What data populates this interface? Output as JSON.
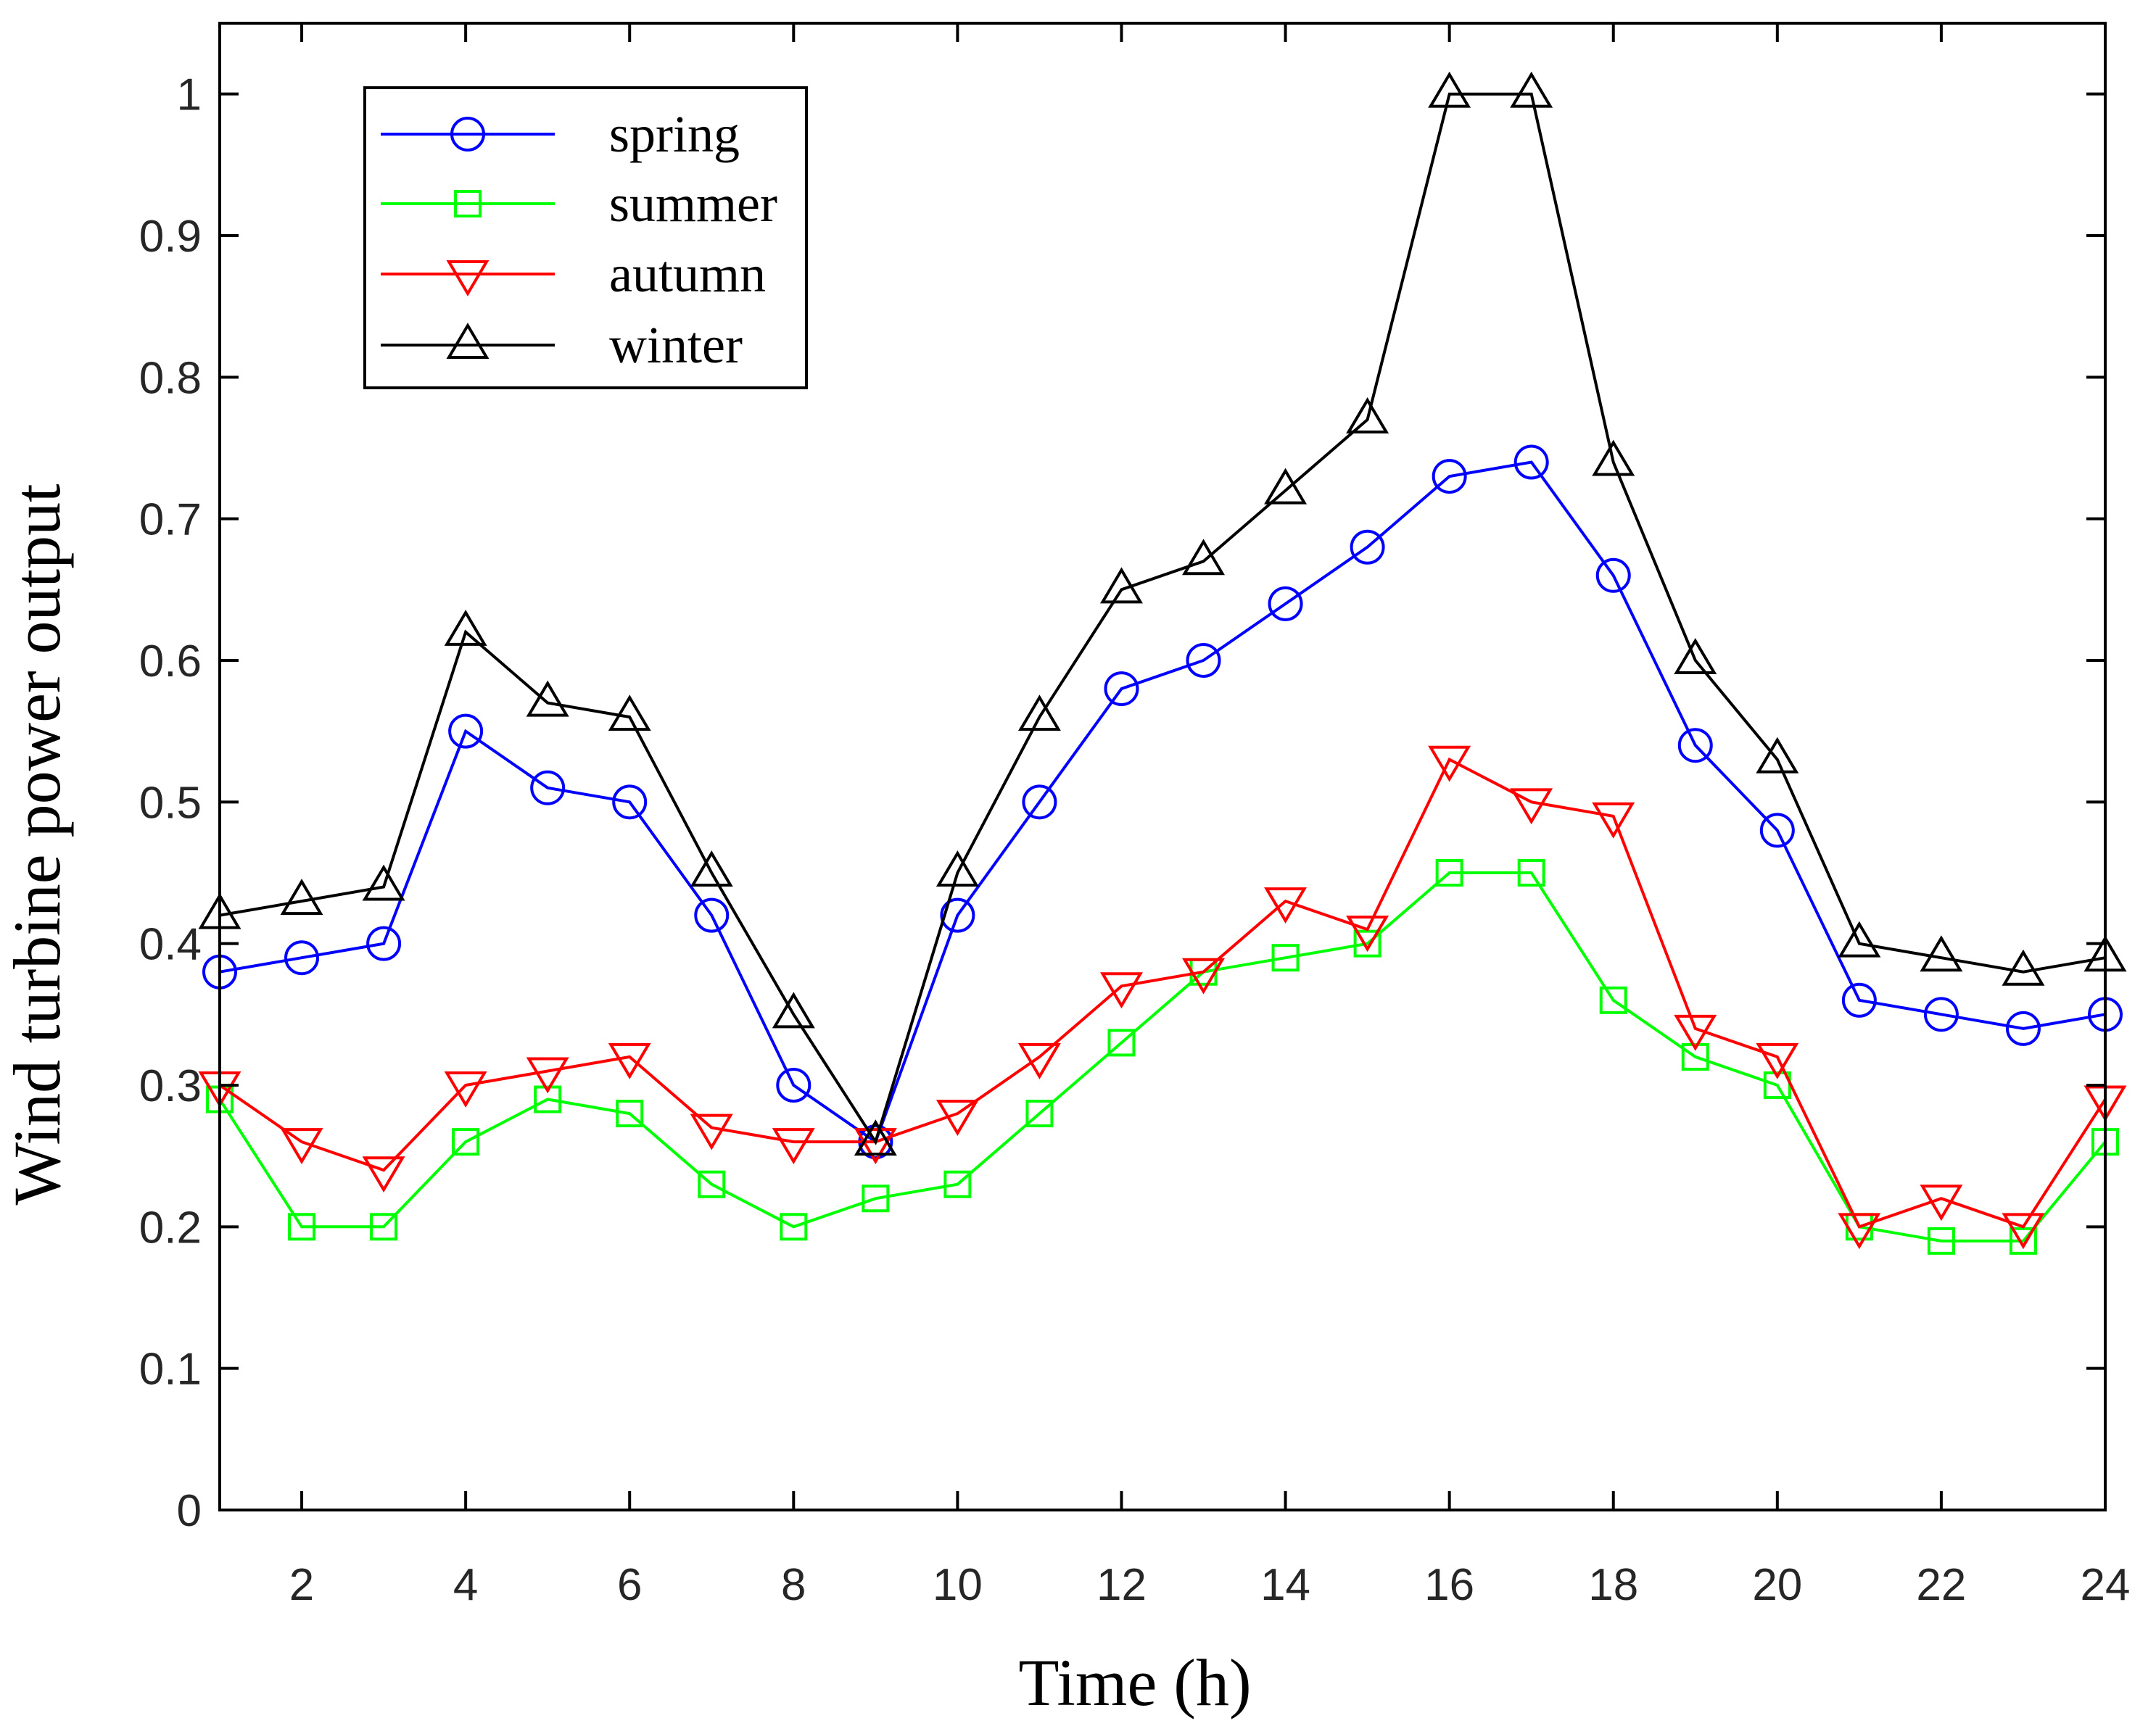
{
  "chart_data": {
    "type": "line",
    "title": "",
    "xlabel": "Time (h)",
    "ylabel": "Wind turbine power output",
    "xlim": [
      1,
      24
    ],
    "ylim": [
      0,
      1.05
    ],
    "xticks": [
      2,
      4,
      6,
      8,
      10,
      12,
      14,
      16,
      18,
      20,
      22,
      24
    ],
    "yticks": [
      0,
      0.1,
      0.2,
      0.3,
      0.4,
      0.5,
      0.6,
      0.7,
      0.8,
      0.9,
      1
    ],
    "ytick_labels": [
      "0",
      "0.1",
      "0.2",
      "0.3",
      "0.4",
      "0.5",
      "0.6",
      "0.7",
      "0.8",
      "0.9",
      "1"
    ],
    "grid": false,
    "legend_position": "top-left",
    "x": [
      1,
      2,
      3,
      4,
      5,
      6,
      7,
      8,
      9,
      10,
      11,
      12,
      13,
      14,
      15,
      16,
      17,
      18,
      19,
      20,
      21,
      22,
      23,
      24
    ],
    "series": [
      {
        "name": "spring",
        "color": "#0000ff",
        "marker": "circle",
        "values": [
          0.38,
          0.39,
          0.4,
          0.55,
          0.51,
          0.5,
          0.42,
          0.3,
          0.26,
          0.42,
          0.5,
          0.58,
          0.6,
          0.64,
          0.68,
          0.73,
          0.74,
          0.66,
          0.54,
          0.48,
          0.36,
          0.35,
          0.34,
          0.35
        ]
      },
      {
        "name": "summer",
        "color": "#00ff00",
        "marker": "square",
        "values": [
          0.29,
          0.2,
          0.2,
          0.26,
          0.29,
          0.28,
          0.23,
          0.2,
          0.22,
          0.23,
          0.28,
          0.33,
          0.38,
          0.39,
          0.4,
          0.45,
          0.45,
          0.36,
          0.32,
          0.3,
          0.2,
          0.19,
          0.19,
          0.26
        ]
      },
      {
        "name": "autumn",
        "color": "#ff0000",
        "marker": "triangle-down",
        "values": [
          0.3,
          0.26,
          0.24,
          0.3,
          0.31,
          0.32,
          0.27,
          0.26,
          0.26,
          0.28,
          0.32,
          0.37,
          0.38,
          0.43,
          0.41,
          0.53,
          0.5,
          0.49,
          0.34,
          0.32,
          0.2,
          0.22,
          0.2,
          0.29
        ]
      },
      {
        "name": "winter",
        "color": "#000000",
        "marker": "triangle-up",
        "values": [
          0.42,
          0.43,
          0.44,
          0.62,
          0.57,
          0.56,
          0.45,
          0.35,
          0.26,
          0.45,
          0.56,
          0.65,
          0.67,
          0.72,
          0.77,
          1.0,
          1.0,
          0.74,
          0.6,
          0.53,
          0.4,
          0.39,
          0.38,
          0.39
        ]
      }
    ]
  }
}
